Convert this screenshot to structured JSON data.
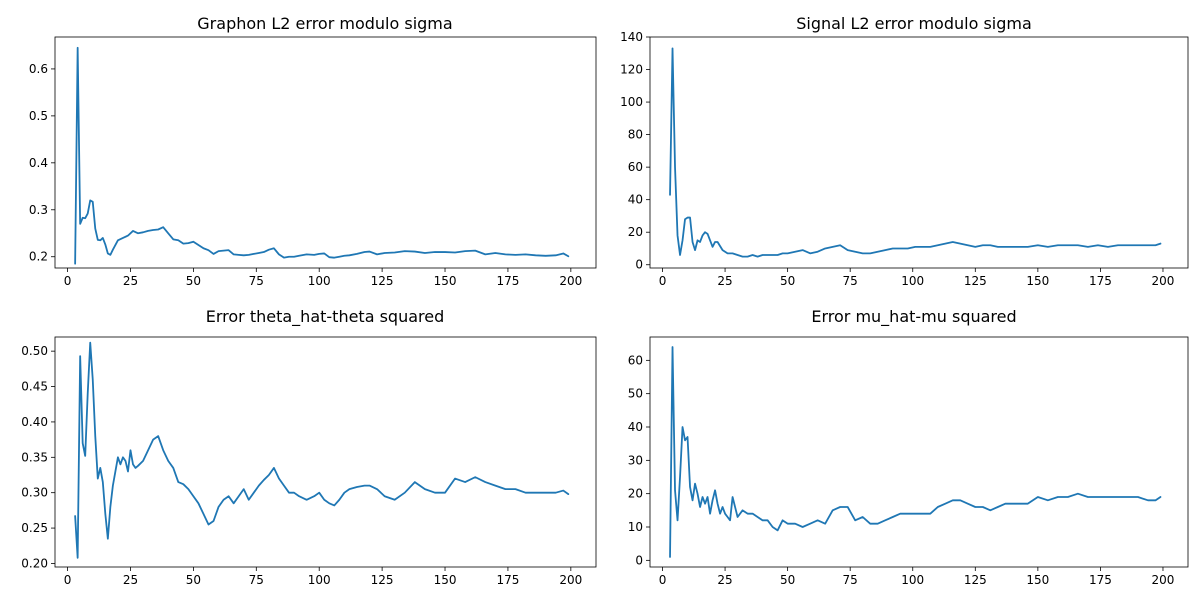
{
  "figure": {
    "background": "#ffffff",
    "series_color": "#1f77b4"
  },
  "chart_data": [
    {
      "type": "line",
      "title": "Graphon L2 error modulo sigma",
      "xlabel": "",
      "ylabel": "",
      "xlim": [
        -5,
        210
      ],
      "ylim": [
        0.176,
        0.668
      ],
      "xticks": [
        0,
        25,
        50,
        75,
        100,
        125,
        150,
        175,
        200
      ],
      "yticks": [
        0.2,
        0.3,
        0.4,
        0.5,
        0.6
      ],
      "ytick_labels": [
        "0.2",
        "0.3",
        "0.4",
        "0.5",
        "0.6"
      ],
      "grid": false,
      "legend": "none",
      "series": [
        {
          "x": [
            3,
            4,
            5,
            6,
            7,
            8,
            9,
            10,
            11,
            12,
            13,
            14,
            15,
            16,
            17,
            18,
            20,
            22,
            24,
            26,
            28,
            30,
            32,
            34,
            36,
            38,
            40,
            42,
            44,
            46,
            48,
            50,
            52,
            54,
            56,
            58,
            60,
            62,
            64,
            66,
            68,
            70,
            72,
            74,
            76,
            78,
            80,
            82,
            84,
            86,
            88,
            90,
            92,
            95,
            98,
            100,
            102,
            104,
            106,
            108,
            110,
            112,
            115,
            118,
            120,
            123,
            126,
            130,
            134,
            138,
            142,
            146,
            150,
            154,
            158,
            162,
            166,
            170,
            174,
            178,
            182,
            186,
            190,
            194,
            197,
            199
          ],
          "y": [
            0.185,
            0.645,
            0.27,
            0.283,
            0.282,
            0.292,
            0.32,
            0.317,
            0.26,
            0.236,
            0.235,
            0.24,
            0.226,
            0.207,
            0.204,
            0.215,
            0.235,
            0.24,
            0.245,
            0.255,
            0.25,
            0.252,
            0.255,
            0.257,
            0.258,
            0.263,
            0.25,
            0.237,
            0.235,
            0.228,
            0.229,
            0.232,
            0.225,
            0.218,
            0.214,
            0.206,
            0.212,
            0.213,
            0.214,
            0.205,
            0.204,
            0.203,
            0.204,
            0.206,
            0.208,
            0.21,
            0.215,
            0.218,
            0.205,
            0.198,
            0.2,
            0.2,
            0.202,
            0.205,
            0.204,
            0.206,
            0.207,
            0.199,
            0.198,
            0.2,
            0.202,
            0.203,
            0.206,
            0.21,
            0.211,
            0.205,
            0.208,
            0.209,
            0.212,
            0.211,
            0.208,
            0.21,
            0.21,
            0.209,
            0.212,
            0.213,
            0.205,
            0.208,
            0.205,
            0.204,
            0.205,
            0.203,
            0.202,
            0.203,
            0.207,
            0.201
          ]
        }
      ]
    },
    {
      "type": "line",
      "title": "Signal L2 error modulo sigma",
      "xlabel": "",
      "ylabel": "",
      "xlim": [
        -5,
        210
      ],
      "ylim": [
        -2,
        140
      ],
      "xticks": [
        0,
        25,
        50,
        75,
        100,
        125,
        150,
        175,
        200
      ],
      "yticks": [
        0,
        20,
        40,
        60,
        80,
        100,
        120,
        140
      ],
      "ytick_labels": [
        "0",
        "20",
        "40",
        "60",
        "80",
        "100",
        "120",
        "140"
      ],
      "grid": false,
      "legend": "none",
      "series": [
        {
          "x": [
            3,
            4,
            5,
            6,
            7,
            8,
            9,
            10,
            11,
            12,
            13,
            14,
            15,
            16,
            17,
            18,
            19,
            20,
            21,
            22,
            24,
            26,
            28,
            30,
            32,
            34,
            36,
            38,
            40,
            42,
            44,
            46,
            48,
            50,
            53,
            56,
            59,
            62,
            65,
            68,
            71,
            74,
            77,
            80,
            83,
            86,
            89,
            92,
            95,
            98,
            101,
            104,
            107,
            110,
            113,
            116,
            119,
            122,
            125,
            128,
            131,
            134,
            137,
            140,
            143,
            146,
            150,
            154,
            158,
            162,
            166,
            170,
            174,
            178,
            182,
            186,
            190,
            194,
            197,
            199
          ],
          "y": [
            43,
            133,
            60,
            18,
            6,
            15,
            28,
            29,
            29,
            14,
            9,
            15,
            14,
            18,
            20,
            19,
            15,
            11,
            14,
            14,
            9,
            7,
            7,
            6,
            5,
            5,
            6,
            5,
            6,
            6,
            6,
            6,
            7,
            7,
            8,
            9,
            7,
            8,
            10,
            11,
            12,
            9,
            8,
            7,
            7,
            8,
            9,
            10,
            10,
            10,
            11,
            11,
            11,
            12,
            13,
            14,
            13,
            12,
            11,
            12,
            12,
            11,
            11,
            11,
            11,
            11,
            12,
            11,
            12,
            12,
            12,
            11,
            12,
            11,
            12,
            12,
            12,
            12,
            12,
            13
          ]
        }
      ]
    },
    {
      "type": "line",
      "title": "Error theta_hat-theta squared",
      "xlabel": "",
      "ylabel": "",
      "xlim": [
        -5,
        210
      ],
      "ylim": [
        0.195,
        0.52
      ],
      "xticks": [
        0,
        25,
        50,
        75,
        100,
        125,
        150,
        175,
        200
      ],
      "yticks": [
        0.2,
        0.25,
        0.3,
        0.35,
        0.4,
        0.45,
        0.5
      ],
      "ytick_labels": [
        "0.20",
        "0.25",
        "0.30",
        "0.35",
        "0.40",
        "0.45",
        "0.50"
      ],
      "grid": false,
      "legend": "none",
      "series": [
        {
          "x": [
            3,
            4,
            5,
            6,
            7,
            8,
            9,
            10,
            11,
            12,
            13,
            14,
            15,
            16,
            17,
            18,
            19,
            20,
            21,
            22,
            23,
            24,
            25,
            26,
            27,
            28,
            30,
            32,
            34,
            36,
            38,
            40,
            42,
            44,
            46,
            48,
            50,
            52,
            54,
            56,
            58,
            60,
            62,
            64,
            66,
            68,
            70,
            72,
            74,
            76,
            78,
            80,
            82,
            84,
            86,
            88,
            90,
            92,
            95,
            98,
            100,
            102,
            104,
            106,
            108,
            110,
            112,
            115,
            118,
            120,
            123,
            126,
            130,
            134,
            138,
            142,
            146,
            150,
            154,
            158,
            162,
            166,
            170,
            174,
            178,
            182,
            186,
            190,
            194,
            197,
            199
          ],
          "y": [
            0.267,
            0.208,
            0.493,
            0.37,
            0.352,
            0.44,
            0.512,
            0.46,
            0.38,
            0.32,
            0.335,
            0.315,
            0.27,
            0.235,
            0.28,
            0.31,
            0.33,
            0.35,
            0.34,
            0.35,
            0.345,
            0.33,
            0.36,
            0.34,
            0.335,
            0.338,
            0.345,
            0.36,
            0.375,
            0.38,
            0.36,
            0.345,
            0.335,
            0.315,
            0.312,
            0.305,
            0.295,
            0.285,
            0.27,
            0.255,
            0.26,
            0.28,
            0.29,
            0.295,
            0.285,
            0.295,
            0.305,
            0.29,
            0.3,
            0.31,
            0.318,
            0.325,
            0.335,
            0.32,
            0.31,
            0.3,
            0.3,
            0.295,
            0.29,
            0.295,
            0.3,
            0.29,
            0.285,
            0.282,
            0.29,
            0.3,
            0.305,
            0.308,
            0.31,
            0.31,
            0.305,
            0.295,
            0.29,
            0.3,
            0.315,
            0.305,
            0.3,
            0.3,
            0.32,
            0.315,
            0.322,
            0.315,
            0.31,
            0.305,
            0.305,
            0.3,
            0.3,
            0.3,
            0.3,
            0.303,
            0.298
          ]
        }
      ]
    },
    {
      "type": "line",
      "title": "Error mu_hat-mu squared",
      "xlabel": "",
      "ylabel": "",
      "xlim": [
        -5,
        210
      ],
      "ylim": [
        -2,
        67
      ],
      "xticks": [
        0,
        25,
        50,
        75,
        100,
        125,
        150,
        175,
        200
      ],
      "yticks": [
        0,
        10,
        20,
        30,
        40,
        50,
        60
      ],
      "ytick_labels": [
        "0",
        "10",
        "20",
        "30",
        "40",
        "50",
        "60"
      ],
      "grid": false,
      "legend": "none",
      "series": [
        {
          "x": [
            3,
            4,
            5,
            6,
            7,
            8,
            9,
            10,
            11,
            12,
            13,
            14,
            15,
            16,
            17,
            18,
            19,
            20,
            21,
            22,
            23,
            24,
            25,
            26,
            27,
            28,
            30,
            32,
            34,
            36,
            38,
            40,
            42,
            44,
            46,
            48,
            50,
            53,
            56,
            59,
            62,
            65,
            68,
            71,
            74,
            77,
            80,
            83,
            86,
            89,
            92,
            95,
            98,
            101,
            104,
            107,
            110,
            113,
            116,
            119,
            122,
            125,
            128,
            131,
            134,
            137,
            140,
            143,
            146,
            150,
            154,
            158,
            162,
            166,
            170,
            174,
            178,
            182,
            186,
            190,
            194,
            197,
            199
          ],
          "y": [
            1,
            64,
            21,
            12,
            25,
            40,
            36,
            37,
            22,
            18,
            23,
            20,
            16,
            19,
            17,
            19,
            14,
            18,
            21,
            17,
            14,
            16,
            14,
            13,
            12,
            19,
            13,
            15,
            14,
            14,
            13,
            12,
            12,
            10,
            9,
            12,
            11,
            11,
            10,
            11,
            12,
            11,
            15,
            16,
            16,
            12,
            13,
            11,
            11,
            12,
            13,
            14,
            14,
            14,
            14,
            14,
            16,
            17,
            18,
            18,
            17,
            16,
            16,
            15,
            16,
            17,
            17,
            17,
            17,
            19,
            18,
            19,
            19,
            20,
            19,
            19,
            19,
            19,
            19,
            19,
            18,
            18,
            19
          ]
        }
      ]
    }
  ]
}
